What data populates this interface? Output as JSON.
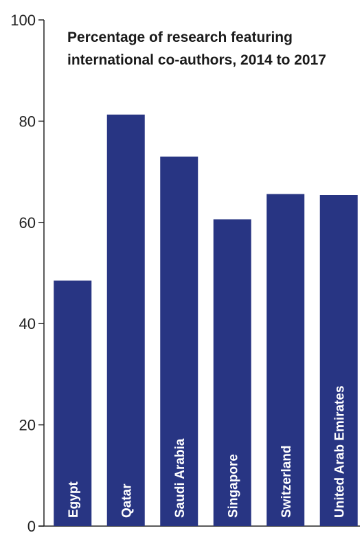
{
  "chart_data": {
    "type": "bar",
    "title_lines": [
      "Percentage of research featuring",
      "international co-authors, 2014 to 2017"
    ],
    "categories": [
      "Egypt",
      "Qatar",
      "Saudi Arabia",
      "Singapore",
      "Switzerland",
      "United Arab Emirates"
    ],
    "values": [
      48.5,
      81.3,
      73.0,
      60.6,
      65.6,
      65.4
    ],
    "ylim": [
      0,
      100
    ],
    "yticks": [
      0,
      20,
      40,
      60,
      80,
      100
    ],
    "ytick_labels": [
      "0",
      "20",
      "40",
      "60",
      "80",
      "100"
    ],
    "grid": false,
    "legend": "none",
    "bar_color": "#283583",
    "bar_label_color": "#ffffff",
    "axis_color": "#222222"
  }
}
